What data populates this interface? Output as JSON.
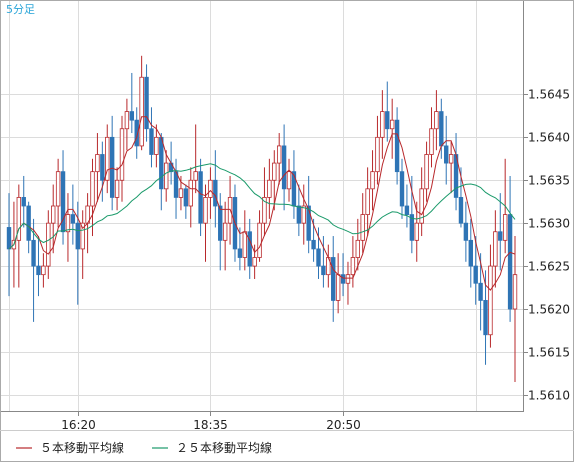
{
  "timeframe_label": "5分足",
  "legend": [
    {
      "label": "５本移動平均線",
      "color": "#b8282b"
    },
    {
      "label": "２５本移動平均線",
      "color": "#1a9a6a"
    }
  ],
  "colors": {
    "up": "#b8282b",
    "down": "#2e74b5",
    "grid": "#dcdcdc",
    "axis": "#888888"
  },
  "chart_data": {
    "type": "candlestick",
    "y_ticks": [
      "1.5610",
      "1.5615",
      "1.5620",
      "1.5625",
      "1.5630",
      "1.5635",
      "1.5640",
      "1.5645"
    ],
    "x_ticks": [
      "16:20",
      "18:35",
      "20:50"
    ],
    "ylim": [
      1.5608,
      1.5656
    ],
    "candles": [
      [
        1.56295,
        1.56335,
        1.56215,
        1.5627
      ],
      [
        1.5627,
        1.56325,
        1.56225,
        1.5628
      ],
      [
        1.5628,
        1.56345,
        1.56225,
        1.5633
      ],
      [
        1.5633,
        1.56355,
        1.56295,
        1.5632
      ],
      [
        1.5632,
        1.56325,
        1.56265,
        1.5628
      ],
      [
        1.5628,
        1.56305,
        1.56185,
        1.5625
      ],
      [
        1.5625,
        1.56285,
        1.56215,
        1.5624
      ],
      [
        1.5624,
        1.56265,
        1.56225,
        1.5625
      ],
      [
        1.5625,
        1.56315,
        1.56235,
        1.563
      ],
      [
        1.563,
        1.56345,
        1.56265,
        1.5632
      ],
      [
        1.5632,
        1.56375,
        1.56295,
        1.5636
      ],
      [
        1.5636,
        1.56385,
        1.56275,
        1.5629
      ],
      [
        1.5629,
        1.56335,
        1.56255,
        1.5631
      ],
      [
        1.5631,
        1.56345,
        1.56275,
        1.563
      ],
      [
        1.563,
        1.56325,
        1.56205,
        1.5627
      ],
      [
        1.5627,
        1.56315,
        1.56235,
        1.563
      ],
      [
        1.563,
        1.56335,
        1.56265,
        1.5632
      ],
      [
        1.5632,
        1.56375,
        1.56285,
        1.5636
      ],
      [
        1.5636,
        1.56405,
        1.56325,
        1.5638
      ],
      [
        1.5638,
        1.56395,
        1.56325,
        1.5635
      ],
      [
        1.5635,
        1.56415,
        1.56335,
        1.564
      ],
      [
        1.564,
        1.56425,
        1.56315,
        1.5633
      ],
      [
        1.5633,
        1.56365,
        1.56315,
        1.5635
      ],
      [
        1.5635,
        1.56425,
        1.56325,
        1.5641
      ],
      [
        1.5641,
        1.56445,
        1.56385,
        1.5643
      ],
      [
        1.5643,
        1.56475,
        1.56405,
        1.5642
      ],
      [
        1.5642,
        1.56435,
        1.56375,
        1.5639
      ],
      [
        1.5639,
        1.56495,
        1.56385,
        1.5647
      ],
      [
        1.5647,
        1.56485,
        1.56395,
        1.5641
      ],
      [
        1.5641,
        1.56435,
        1.56365,
        1.5638
      ],
      [
        1.5638,
        1.56415,
        1.56365,
        1.564
      ],
      [
        1.564,
        1.56405,
        1.56315,
        1.5634
      ],
      [
        1.5634,
        1.56385,
        1.56325,
        1.5637
      ],
      [
        1.5637,
        1.56395,
        1.56345,
        1.5636
      ],
      [
        1.5636,
        1.56375,
        1.56305,
        1.5633
      ],
      [
        1.5633,
        1.56355,
        1.56315,
        1.5634
      ],
      [
        1.5634,
        1.56345,
        1.56305,
        1.5632
      ],
      [
        1.5632,
        1.56365,
        1.56295,
        1.5635
      ],
      [
        1.5635,
        1.56415,
        1.56335,
        1.5636
      ],
      [
        1.5636,
        1.56375,
        1.56285,
        1.563
      ],
      [
        1.563,
        1.56345,
        1.56255,
        1.5633
      ],
      [
        1.5633,
        1.56365,
        1.56305,
        1.5635
      ],
      [
        1.5635,
        1.56385,
        1.56295,
        1.5632
      ],
      [
        1.5632,
        1.56335,
        1.56245,
        1.5628
      ],
      [
        1.5628,
        1.56325,
        1.56245,
        1.563
      ],
      [
        1.563,
        1.56355,
        1.56275,
        1.5633
      ],
      [
        1.5633,
        1.56345,
        1.56255,
        1.5627
      ],
      [
        1.5627,
        1.56295,
        1.56245,
        1.5626
      ],
      [
        1.5626,
        1.56315,
        1.56245,
        1.5629
      ],
      [
        1.5629,
        1.56305,
        1.56235,
        1.5625
      ],
      [
        1.5625,
        1.56275,
        1.56235,
        1.5626
      ],
      [
        1.5626,
        1.56315,
        1.56255,
        1.563
      ],
      [
        1.563,
        1.56365,
        1.56285,
        1.5633
      ],
      [
        1.5633,
        1.56375,
        1.56305,
        1.5635
      ],
      [
        1.5635,
        1.56385,
        1.56315,
        1.5637
      ],
      [
        1.5637,
        1.56405,
        1.56345,
        1.5639
      ],
      [
        1.5639,
        1.56415,
        1.56315,
        1.5634
      ],
      [
        1.5634,
        1.56375,
        1.56325,
        1.5636
      ],
      [
        1.5636,
        1.56385,
        1.56305,
        1.5632
      ],
      [
        1.5632,
        1.56345,
        1.56285,
        1.563
      ],
      [
        1.563,
        1.56345,
        1.56275,
        1.5632
      ],
      [
        1.5632,
        1.56355,
        1.56265,
        1.5628
      ],
      [
        1.5628,
        1.56305,
        1.56255,
        1.5627
      ],
      [
        1.5627,
        1.56295,
        1.56235,
        1.5625
      ],
      [
        1.5625,
        1.56285,
        1.56225,
        1.5624
      ],
      [
        1.5624,
        1.56275,
        1.56225,
        1.5626
      ],
      [
        1.5626,
        1.56285,
        1.56185,
        1.5621
      ],
      [
        1.5621,
        1.56265,
        1.56195,
        1.5624
      ],
      [
        1.5624,
        1.56265,
        1.56215,
        1.5623
      ],
      [
        1.5623,
        1.56255,
        1.56205,
        1.5624
      ],
      [
        1.5624,
        1.56285,
        1.56225,
        1.5626
      ],
      [
        1.5626,
        1.56305,
        1.56245,
        1.5628
      ],
      [
        1.5628,
        1.56335,
        1.56265,
        1.5631
      ],
      [
        1.5631,
        1.56365,
        1.56285,
        1.5634
      ],
      [
        1.5634,
        1.56385,
        1.56315,
        1.5636
      ],
      [
        1.5636,
        1.56425,
        1.56345,
        1.564
      ],
      [
        1.564,
        1.56455,
        1.56375,
        1.5643
      ],
      [
        1.5643,
        1.56465,
        1.56395,
        1.5641
      ],
      [
        1.5641,
        1.56445,
        1.56375,
        1.5642
      ],
      [
        1.5642,
        1.56435,
        1.56345,
        1.5636
      ],
      [
        1.5636,
        1.56375,
        1.56305,
        1.5632
      ],
      [
        1.5632,
        1.56345,
        1.56295,
        1.5631
      ],
      [
        1.5631,
        1.56355,
        1.56265,
        1.5628
      ],
      [
        1.5628,
        1.56325,
        1.56255,
        1.563
      ],
      [
        1.563,
        1.56365,
        1.56285,
        1.5634
      ],
      [
        1.5634,
        1.56395,
        1.56325,
        1.5638
      ],
      [
        1.5638,
        1.56435,
        1.56365,
        1.5641
      ],
      [
        1.5641,
        1.56455,
        1.56385,
        1.5643
      ],
      [
        1.5643,
        1.56445,
        1.56375,
        1.5639
      ],
      [
        1.5639,
        1.56425,
        1.56345,
        1.5637
      ],
      [
        1.5637,
        1.56395,
        1.56335,
        1.5638
      ],
      [
        1.5638,
        1.56405,
        1.56315,
        1.5633
      ],
      [
        1.5633,
        1.56365,
        1.56295,
        1.563
      ],
      [
        1.563,
        1.56325,
        1.56255,
        1.5628
      ],
      [
        1.5628,
        1.56305,
        1.56225,
        1.5625
      ],
      [
        1.5625,
        1.56285,
        1.56205,
        1.5623
      ],
      [
        1.5623,
        1.56265,
        1.56175,
        1.5621
      ],
      [
        1.5621,
        1.56245,
        1.56135,
        1.5617
      ],
      [
        1.5617,
        1.56275,
        1.56155,
        1.5625
      ],
      [
        1.5625,
        1.56315,
        1.56225,
        1.5629
      ],
      [
        1.5629,
        1.56335,
        1.56245,
        1.5628
      ],
      [
        1.5628,
        1.56375,
        1.56265,
        1.5631
      ],
      [
        1.5631,
        1.56355,
        1.56185,
        1.562
      ],
      [
        1.562,
        1.56285,
        1.56115,
        1.5624
      ]
    ],
    "ma_windows": [
      5,
      25
    ]
  }
}
